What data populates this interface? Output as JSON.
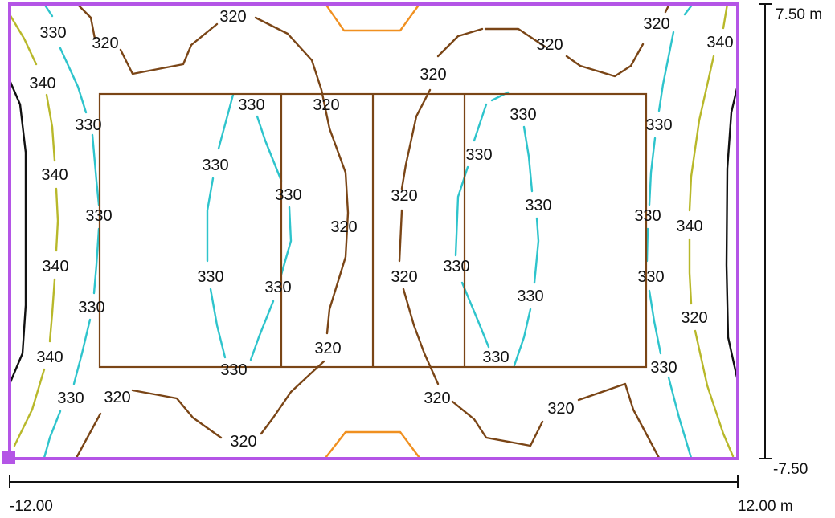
{
  "colors": {
    "border": "#b455e6",
    "court": "#7a4516",
    "iso_310": "#f09020",
    "iso_320": "#7a4516",
    "iso_330": "#2ec4cc",
    "iso_340": "#b8b82a",
    "iso_350": "#111111",
    "dimension": "#111111"
  },
  "dimensions": {
    "x_min": "-12.00",
    "x_max": "12.00 m",
    "y_max": "7.50 m",
    "y_min": "-7.50"
  },
  "contour_labels": [
    {
      "text": "320"
    },
    {
      "text": "330"
    },
    {
      "text": "320"
    },
    {
      "text": "340"
    },
    {
      "text": "320"
    },
    {
      "text": "320"
    },
    {
      "text": "340"
    },
    {
      "text": "330"
    },
    {
      "text": "320"
    },
    {
      "text": "330"
    },
    {
      "text": "330"
    },
    {
      "text": "330"
    },
    {
      "text": "340"
    },
    {
      "text": "330"
    },
    {
      "text": "330"
    },
    {
      "text": "320"
    },
    {
      "text": "320"
    },
    {
      "text": "330"
    },
    {
      "text": "330"
    },
    {
      "text": "340"
    },
    {
      "text": "340"
    },
    {
      "text": "330"
    },
    {
      "text": "330"
    },
    {
      "text": "320"
    },
    {
      "text": "320"
    },
    {
      "text": "330"
    },
    {
      "text": "330"
    },
    {
      "text": "330"
    },
    {
      "text": "330"
    },
    {
      "text": "340"
    },
    {
      "text": "320"
    },
    {
      "text": "330"
    },
    {
      "text": "320"
    },
    {
      "text": "330"
    },
    {
      "text": "320"
    },
    {
      "text": "320"
    },
    {
      "text": "330"
    },
    {
      "text": "330"
    },
    {
      "text": "320"
    }
  ]
}
